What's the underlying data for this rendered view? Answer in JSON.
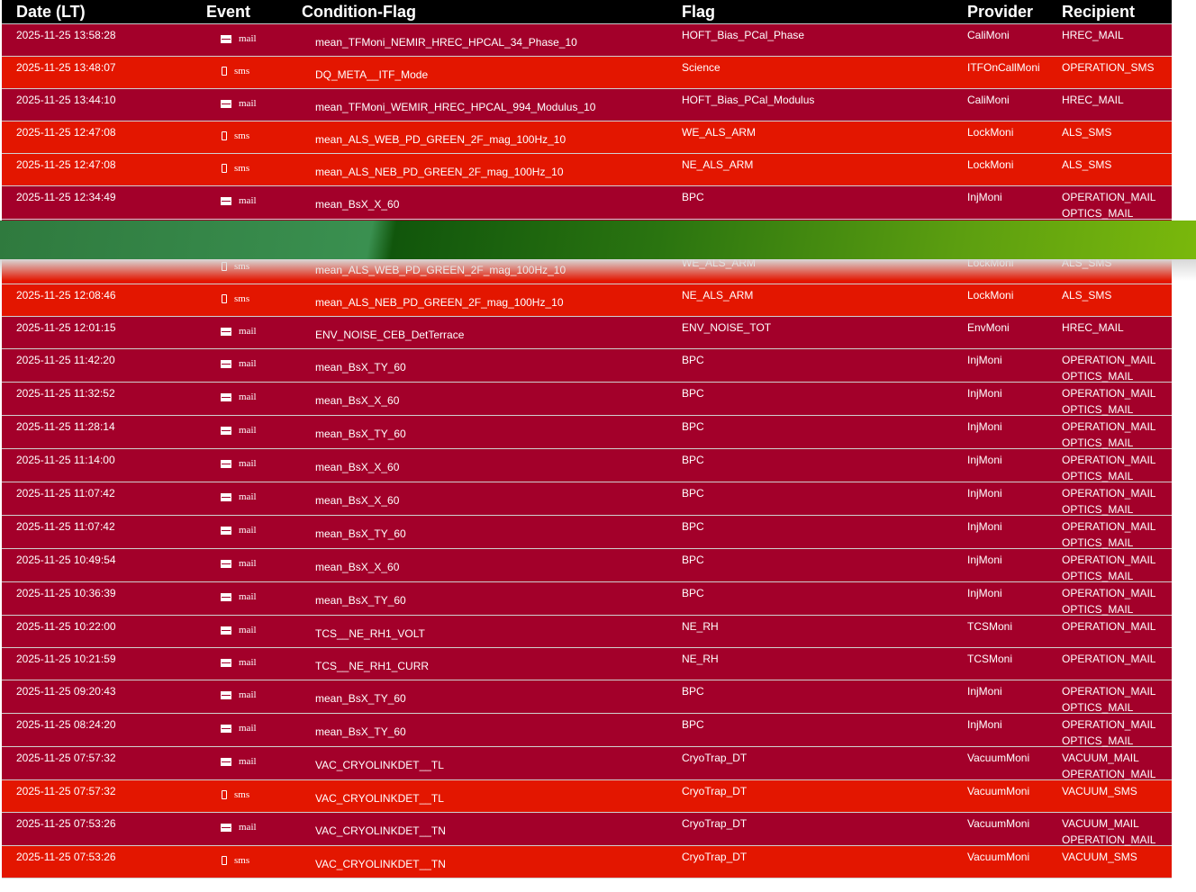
{
  "header": {
    "date": "Date (LT)",
    "event": "Event",
    "condition": "Condition-Flag",
    "flag": "Flag",
    "provider": "Provider",
    "recipient": "Recipient"
  },
  "colors": {
    "mail_row": "#a3002a",
    "sms_row": "#e31600",
    "header": "#000000",
    "banner_start": "#2f7a3e",
    "banner_end": "#7ab80c"
  },
  "icons": {
    "mail": "envelope-icon",
    "sms": "phone-icon"
  },
  "rows": [
    {
      "date": "2025-11-25 13:58:28",
      "event": "mail",
      "condition": "mean_TFMoni_NEMIR_HREC_HPCAL_34_Phase_10",
      "flag": "HOFT_Bias_PCal_Phase",
      "provider": "CaliMoni",
      "recipients": [
        "HREC_MAIL"
      ]
    },
    {
      "date": "2025-11-25 13:48:07",
      "event": "sms",
      "condition": "DQ_META__ITF_Mode",
      "flag": "Science",
      "provider": "ITFOnCallMoni",
      "recipients": [
        "OPERATION_SMS"
      ]
    },
    {
      "date": "2025-11-25 13:44:10",
      "event": "mail",
      "condition": "mean_TFMoni_WEMIR_HREC_HPCAL_994_Modulus_10",
      "flag": "HOFT_Bias_PCal_Modulus",
      "provider": "CaliMoni",
      "recipients": [
        "HREC_MAIL"
      ]
    },
    {
      "date": "2025-11-25 12:47:08",
      "event": "sms",
      "condition": "mean_ALS_WEB_PD_GREEN_2F_mag_100Hz_10",
      "flag": "WE_ALS_ARM",
      "provider": "LockMoni",
      "recipients": [
        "ALS_SMS"
      ]
    },
    {
      "date": "2025-11-25 12:47:08",
      "event": "sms",
      "condition": "mean_ALS_NEB_PD_GREEN_2F_mag_100Hz_10",
      "flag": "NE_ALS_ARM",
      "provider": "LockMoni",
      "recipients": [
        "ALS_SMS"
      ]
    },
    {
      "date": "2025-11-25 12:34:49",
      "event": "mail",
      "condition": "mean_BsX_X_60",
      "flag": "BPC",
      "provider": "InjMoni",
      "recipients": [
        "OPERATION_MAIL",
        "OPTICS_MAIL"
      ]
    },
    {
      "hidden": true
    },
    {
      "date": "",
      "event": "sms",
      "condition": "mean_ALS_WEB_PD_GREEN_2F_mag_100Hz_10",
      "flag": "WE_ALS_ARM",
      "provider": "LockMoni",
      "recipients": [
        "ALS_SMS"
      ]
    },
    {
      "date": "2025-11-25 12:08:46",
      "event": "sms",
      "condition": "mean_ALS_NEB_PD_GREEN_2F_mag_100Hz_10",
      "flag": "NE_ALS_ARM",
      "provider": "LockMoni",
      "recipients": [
        "ALS_SMS"
      ]
    },
    {
      "date": "2025-11-25 12:01:15",
      "event": "mail",
      "condition": "ENV_NOISE_CEB_DetTerrace",
      "flag": "ENV_NOISE_TOT",
      "provider": "EnvMoni",
      "recipients": [
        "HREC_MAIL"
      ]
    },
    {
      "date": "2025-11-25 11:42:20",
      "event": "mail",
      "condition": "mean_BsX_TY_60",
      "flag": "BPC",
      "provider": "InjMoni",
      "recipients": [
        "OPERATION_MAIL",
        "OPTICS_MAIL"
      ]
    },
    {
      "date": "2025-11-25 11:32:52",
      "event": "mail",
      "condition": "mean_BsX_X_60",
      "flag": "BPC",
      "provider": "InjMoni",
      "recipients": [
        "OPERATION_MAIL",
        "OPTICS_MAIL"
      ]
    },
    {
      "date": "2025-11-25 11:28:14",
      "event": "mail",
      "condition": "mean_BsX_TY_60",
      "flag": "BPC",
      "provider": "InjMoni",
      "recipients": [
        "OPERATION_MAIL",
        "OPTICS_MAIL"
      ]
    },
    {
      "date": "2025-11-25 11:14:00",
      "event": "mail",
      "condition": "mean_BsX_X_60",
      "flag": "BPC",
      "provider": "InjMoni",
      "recipients": [
        "OPERATION_MAIL",
        "OPTICS_MAIL"
      ]
    },
    {
      "date": "2025-11-25 11:07:42",
      "event": "mail",
      "condition": "mean_BsX_X_60",
      "flag": "BPC",
      "provider": "InjMoni",
      "recipients": [
        "OPERATION_MAIL",
        "OPTICS_MAIL"
      ]
    },
    {
      "date": "2025-11-25 11:07:42",
      "event": "mail",
      "condition": "mean_BsX_TY_60",
      "flag": "BPC",
      "provider": "InjMoni",
      "recipients": [
        "OPERATION_MAIL",
        "OPTICS_MAIL"
      ]
    },
    {
      "date": "2025-11-25 10:49:54",
      "event": "mail",
      "condition": "mean_BsX_X_60",
      "flag": "BPC",
      "provider": "InjMoni",
      "recipients": [
        "OPERATION_MAIL",
        "OPTICS_MAIL"
      ]
    },
    {
      "date": "2025-11-25 10:36:39",
      "event": "mail",
      "condition": "mean_BsX_TY_60",
      "flag": "BPC",
      "provider": "InjMoni",
      "recipients": [
        "OPERATION_MAIL",
        "OPTICS_MAIL"
      ]
    },
    {
      "date": "2025-11-25 10:22:00",
      "event": "mail",
      "condition": "TCS__NE_RH1_VOLT",
      "flag": "NE_RH",
      "provider": "TCSMoni",
      "recipients": [
        "OPERATION_MAIL"
      ]
    },
    {
      "date": "2025-11-25 10:21:59",
      "event": "mail",
      "condition": "TCS__NE_RH1_CURR",
      "flag": "NE_RH",
      "provider": "TCSMoni",
      "recipients": [
        "OPERATION_MAIL"
      ]
    },
    {
      "date": "2025-11-25 09:20:43",
      "event": "mail",
      "condition": "mean_BsX_TY_60",
      "flag": "BPC",
      "provider": "InjMoni",
      "recipients": [
        "OPERATION_MAIL",
        "OPTICS_MAIL"
      ]
    },
    {
      "date": "2025-11-25 08:24:20",
      "event": "mail",
      "condition": "mean_BsX_TY_60",
      "flag": "BPC",
      "provider": "InjMoni",
      "recipients": [
        "OPERATION_MAIL",
        "OPTICS_MAIL"
      ]
    },
    {
      "date": "2025-11-25 07:57:32",
      "event": "mail",
      "condition": "VAC_CRYOLINKDET__TL",
      "flag": "CryoTrap_DT",
      "provider": "VacuumMoni",
      "recipients": [
        "VACUUM_MAIL",
        "OPERATION_MAIL"
      ]
    },
    {
      "date": "2025-11-25 07:57:32",
      "event": "sms",
      "condition": "VAC_CRYOLINKDET__TL",
      "flag": "CryoTrap_DT",
      "provider": "VacuumMoni",
      "recipients": [
        "VACUUM_SMS"
      ]
    },
    {
      "date": "2025-11-25 07:53:26",
      "event": "mail",
      "condition": "VAC_CRYOLINKDET__TN",
      "flag": "CryoTrap_DT",
      "provider": "VacuumMoni",
      "recipients": [
        "VACUUM_MAIL",
        "OPERATION_MAIL"
      ]
    },
    {
      "date": "2025-11-25 07:53:26",
      "event": "sms",
      "condition": "VAC_CRYOLINKDET__TN",
      "flag": "CryoTrap_DT",
      "provider": "VacuumMoni",
      "recipients": [
        "VACUUM_SMS"
      ]
    }
  ]
}
